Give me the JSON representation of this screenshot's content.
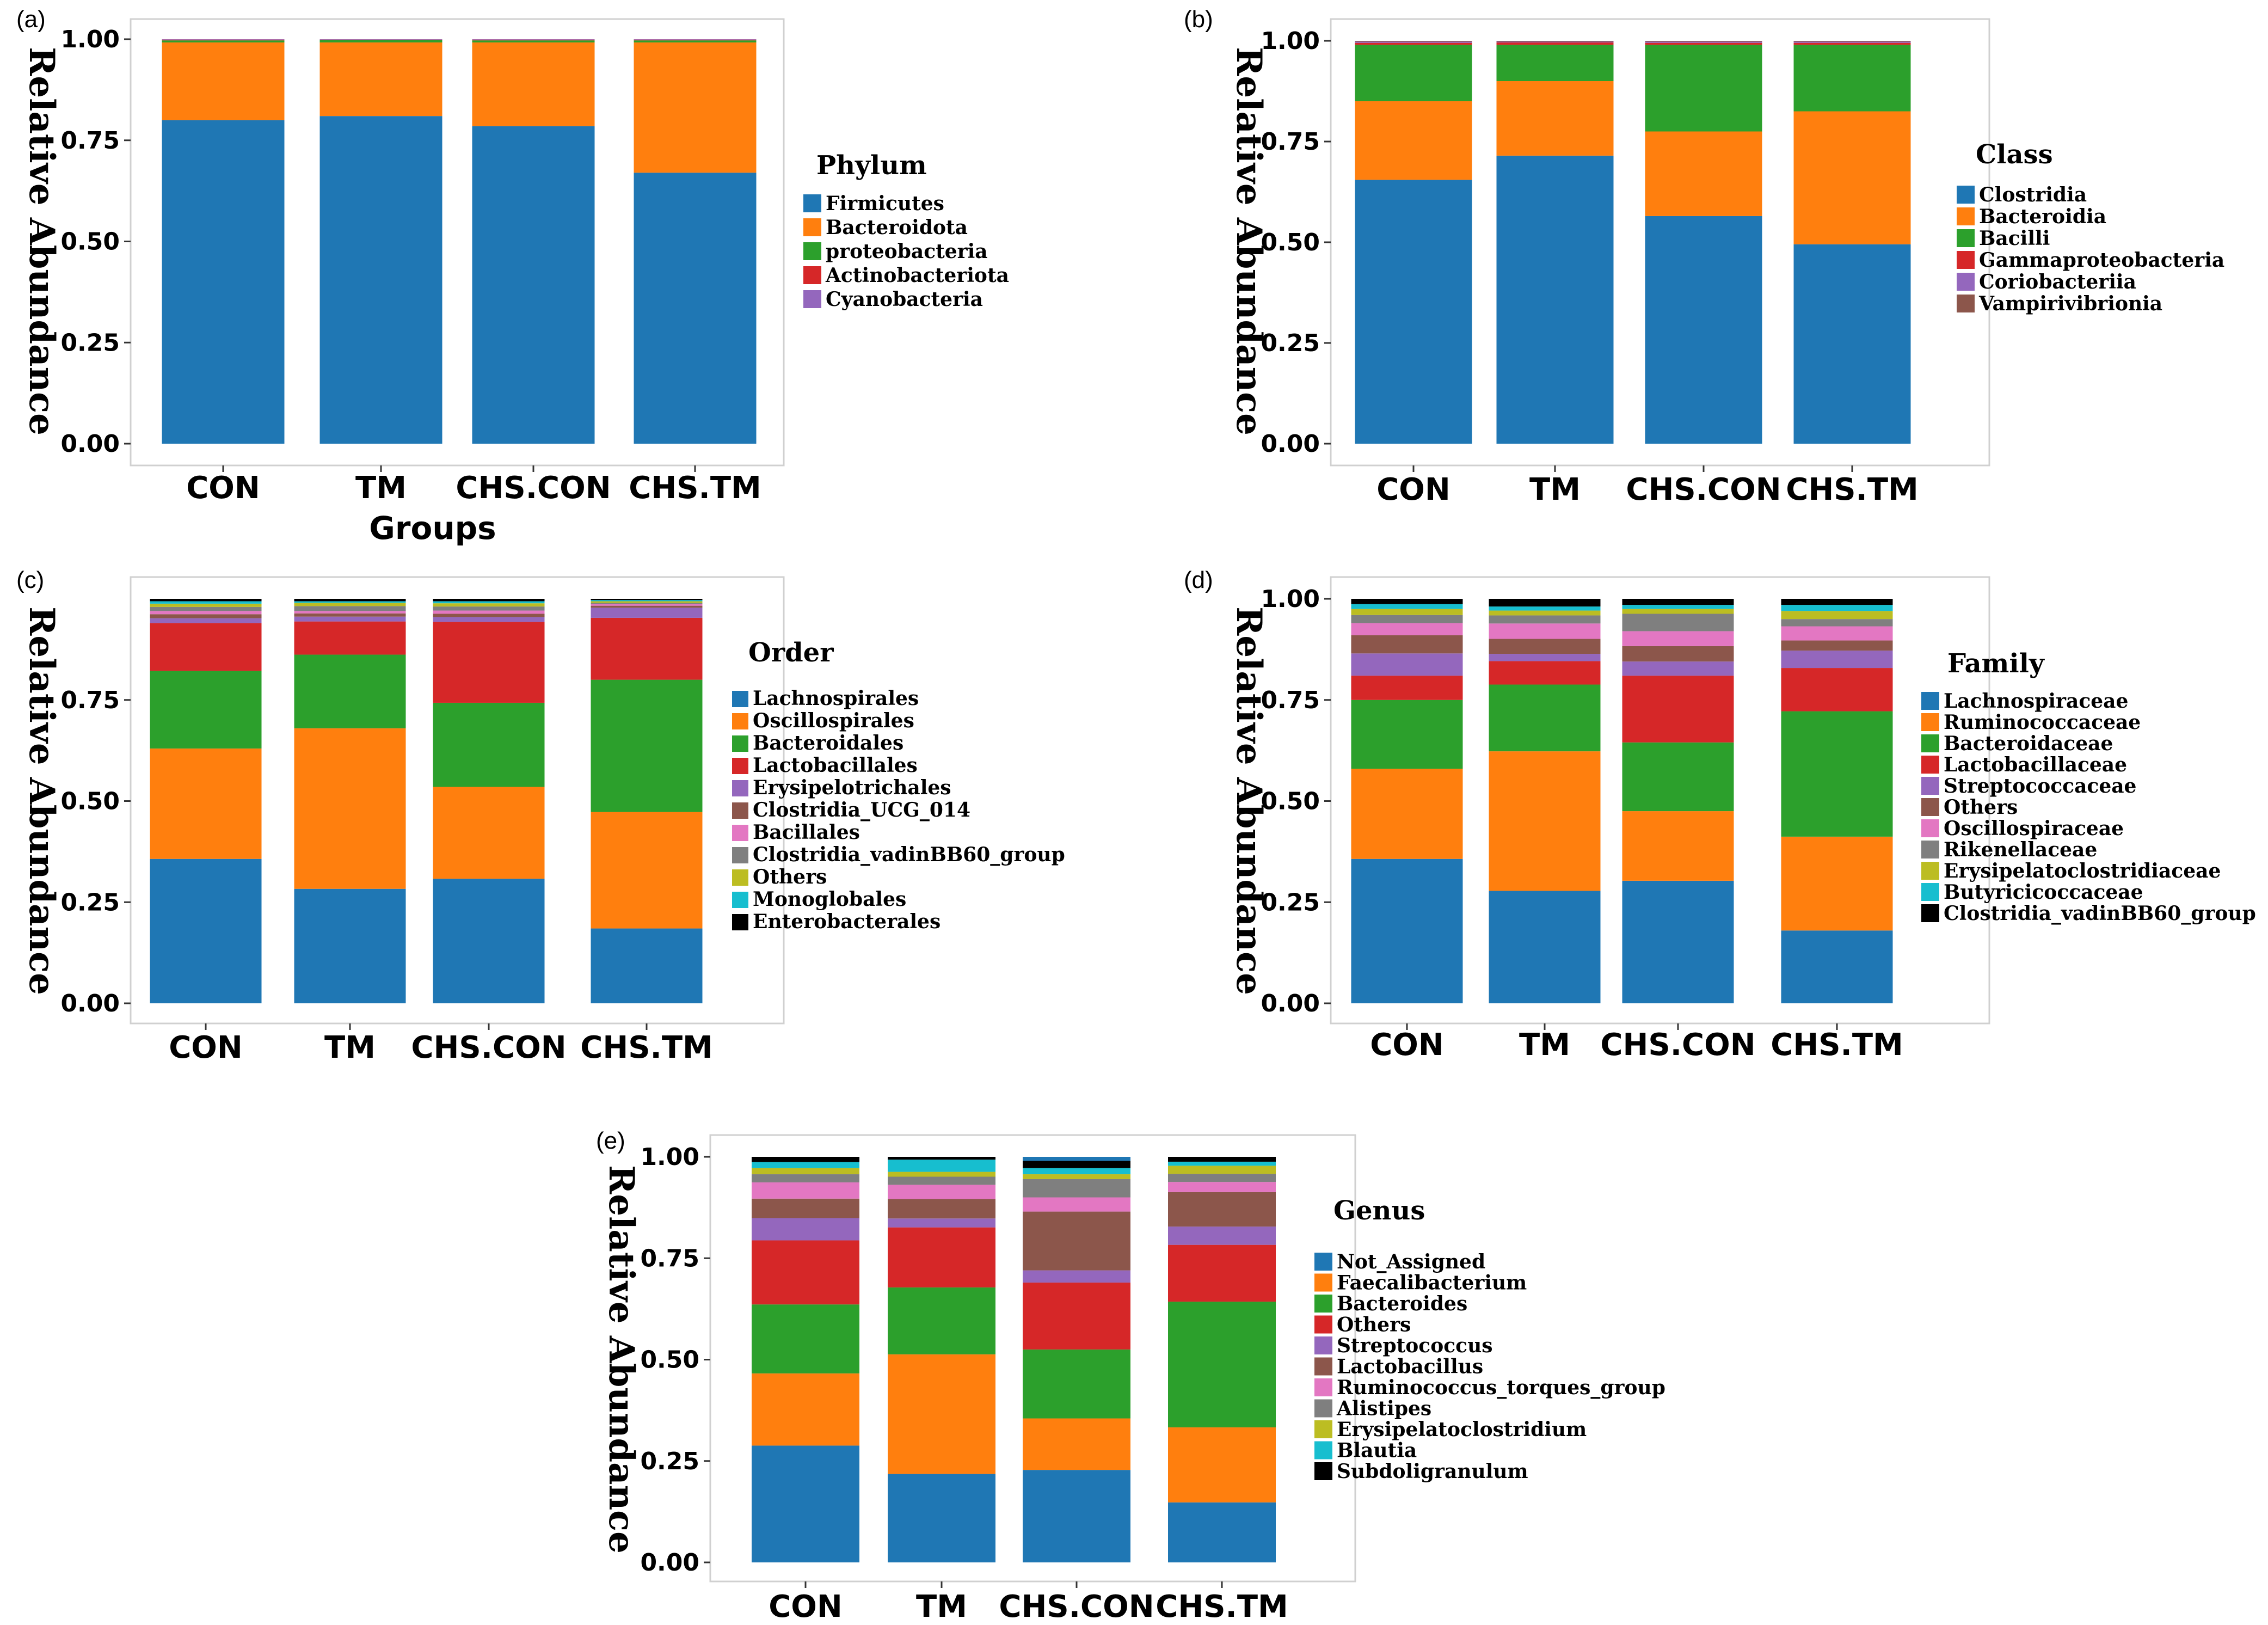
{
  "colors": [
    "#1F77B4",
    "#FF7F0E",
    "#2CA02C",
    "#D62728",
    "#9467BD",
    "#8C564B",
    "#E377C2",
    "#7F7F7F",
    "#BCBD22",
    "#17BECF",
    "#000000"
  ],
  "chart_data": [
    {
      "type": "bar",
      "stacked": true,
      "panel": "(a)",
      "legend_title": "Phylum",
      "xlabel": "Groups",
      "ylabel": "Relative Abundance",
      "ylim": [
        0,
        1
      ],
      "yticks": [
        "0.00",
        "0.25",
        "0.50",
        "0.75",
        "1.00"
      ],
      "categories": [
        "CON",
        "TM",
        "CHS.CON",
        "CHS.TM"
      ],
      "series": [
        {
          "name": "Firmicutes",
          "values": [
            0.8,
            0.81,
            0.785,
            0.67
          ]
        },
        {
          "name": "Bacteroidota",
          "values": [
            0.192,
            0.182,
            0.207,
            0.322
          ]
        },
        {
          "name": "proteobacteria",
          "values": [
            0.005,
            0.006,
            0.005,
            0.005
          ]
        },
        {
          "name": "Actinobacteriota",
          "values": [
            0.002,
            0.001,
            0.002,
            0.002
          ]
        },
        {
          "name": "Cyanobacteria",
          "values": [
            0.001,
            0.001,
            0.001,
            0.001
          ]
        }
      ]
    },
    {
      "type": "bar",
      "stacked": true,
      "panel": "(b)",
      "legend_title": "Class",
      "xlabel": "",
      "ylabel": "Relative Abundance",
      "ylim": [
        0,
        1
      ],
      "yticks": [
        "0.00",
        "0.25",
        "0.50",
        "0.75",
        "1.00"
      ],
      "categories": [
        "CON",
        "TM",
        "CHS.CON",
        "CHS.TM"
      ],
      "series": [
        {
          "name": "Clostridia",
          "values": [
            0.655,
            0.715,
            0.565,
            0.495
          ]
        },
        {
          "name": "Bacteroidia",
          "values": [
            0.195,
            0.185,
            0.21,
            0.33
          ]
        },
        {
          "name": "Bacilli",
          "values": [
            0.14,
            0.09,
            0.215,
            0.165
          ]
        },
        {
          "name": "Gammaproteobacteria",
          "values": [
            0.005,
            0.006,
            0.005,
            0.005
          ]
        },
        {
          "name": "Coriobacteriia",
          "values": [
            0.003,
            0.002,
            0.003,
            0.003
          ]
        },
        {
          "name": "Vampirivibrionia",
          "values": [
            0.002,
            0.002,
            0.002,
            0.002
          ]
        }
      ]
    },
    {
      "type": "bar",
      "stacked": true,
      "panel": "(c)",
      "legend_title": "Order",
      "xlabel": "",
      "ylabel": "Relative Abundance",
      "ylim": [
        0,
        1
      ],
      "yticks": [
        "0.00",
        "0.25",
        "0.50",
        "0.75"
      ],
      "categories": [
        "CON",
        "TM",
        "CHS.CON",
        "CHS.TM"
      ],
      "series": [
        {
          "name": "Lachnospirales",
          "values": [
            0.357,
            0.283,
            0.308,
            0.185
          ]
        },
        {
          "name": "Oscillospirales",
          "values": [
            0.273,
            0.397,
            0.227,
            0.288
          ]
        },
        {
          "name": "Bacteroidales",
          "values": [
            0.192,
            0.182,
            0.208,
            0.327
          ]
        },
        {
          "name": "Lactobacillales",
          "values": [
            0.118,
            0.082,
            0.2,
            0.153
          ]
        },
        {
          "name": "Erysipelotrichales",
          "values": [
            0.012,
            0.012,
            0.012,
            0.025
          ]
        },
        {
          "name": "Clostridia_UCG_014",
          "values": [
            0.01,
            0.008,
            0.008,
            0.005
          ]
        },
        {
          "name": "Bacillales",
          "values": [
            0.008,
            0.006,
            0.008,
            0.004
          ]
        },
        {
          "name": "Clostridia_vadinBB60_group",
          "values": [
            0.01,
            0.012,
            0.01,
            0.003
          ]
        },
        {
          "name": "Others",
          "values": [
            0.008,
            0.008,
            0.008,
            0.004
          ]
        },
        {
          "name": "Monoglobales",
          "values": [
            0.006,
            0.004,
            0.005,
            0.003
          ]
        },
        {
          "name": "Enterobacterales",
          "values": [
            0.006,
            0.006,
            0.006,
            0.003
          ]
        }
      ]
    },
    {
      "type": "bar",
      "stacked": true,
      "panel": "(d)",
      "legend_title": "Family",
      "xlabel": "",
      "ylabel": "Relative Abundance",
      "ylim": [
        0,
        1
      ],
      "yticks": [
        "0.00",
        "0.25",
        "0.50",
        "0.75",
        "1.00"
      ],
      "categories": [
        "CON",
        "TM",
        "CHS.CON",
        "CHS.TM"
      ],
      "series": [
        {
          "name": "Lachnospiraceae",
          "values": [
            0.357,
            0.278,
            0.303,
            0.18
          ]
        },
        {
          "name": "Ruminococcaceae",
          "values": [
            0.223,
            0.345,
            0.172,
            0.232
          ]
        },
        {
          "name": "Bacteroidaceae",
          "values": [
            0.17,
            0.165,
            0.17,
            0.31
          ]
        },
        {
          "name": "Lactobacillaceae",
          "values": [
            0.06,
            0.058,
            0.165,
            0.107
          ]
        },
        {
          "name": "Streptococcaceae",
          "values": [
            0.055,
            0.018,
            0.035,
            0.043
          ]
        },
        {
          "name": "Others",
          "values": [
            0.045,
            0.037,
            0.038,
            0.025
          ]
        },
        {
          "name": "Oscillospiraceae",
          "values": [
            0.03,
            0.038,
            0.037,
            0.035
          ]
        },
        {
          "name": "Rikenellaceae",
          "values": [
            0.02,
            0.02,
            0.043,
            0.018
          ]
        },
        {
          "name": "Erysipelatoclostridiaceae",
          "values": [
            0.015,
            0.012,
            0.012,
            0.02
          ]
        },
        {
          "name": "Butyricicoccaceae",
          "values": [
            0.012,
            0.01,
            0.01,
            0.015
          ]
        },
        {
          "name": "Clostridia_vadinBB60_group",
          "values": [
            0.013,
            0.019,
            0.015,
            0.015
          ]
        }
      ]
    },
    {
      "type": "bar",
      "stacked": true,
      "panel": "(e)",
      "legend_title": "Genus",
      "xlabel": "",
      "ylabel": "Relative Abundance",
      "ylim": [
        0,
        1
      ],
      "yticks": [
        "0.00",
        "0.25",
        "0.50",
        "0.75",
        "1.00"
      ],
      "categories": [
        "CON",
        "TM",
        "CHS.CON",
        "CHS.TM"
      ],
      "series": [
        {
          "name": "Not_Assigned",
          "values": [
            0.288,
            0.218,
            0.228,
            0.148
          ]
        },
        {
          "name": "Faecalibacterium",
          "values": [
            0.178,
            0.295,
            0.127,
            0.185
          ]
        },
        {
          "name": "Bacteroides",
          "values": [
            0.17,
            0.165,
            0.17,
            0.31
          ]
        },
        {
          "name": "Others",
          "values": [
            0.158,
            0.148,
            0.165,
            0.14
          ]
        },
        {
          "name": "Streptococcus",
          "values": [
            0.055,
            0.022,
            0.03,
            0.045
          ]
        },
        {
          "name": "Lactobacillus",
          "values": [
            0.048,
            0.048,
            0.145,
            0.085
          ]
        },
        {
          "name": "Ruminococcus_torques_group",
          "values": [
            0.04,
            0.035,
            0.035,
            0.025
          ]
        },
        {
          "name": "Alistipes",
          "values": [
            0.02,
            0.02,
            0.045,
            0.02
          ]
        },
        {
          "name": "Erysipelatoclostridium",
          "values": [
            0.015,
            0.012,
            0.012,
            0.02
          ]
        },
        {
          "name": "Blautia",
          "values": [
            0.015,
            0.03,
            0.015,
            0.01
          ]
        },
        {
          "name": "Subdoligranulum",
          "values": [
            0.013,
            0.007,
            0.018,
            0.012
          ]
        }
      ]
    }
  ]
}
